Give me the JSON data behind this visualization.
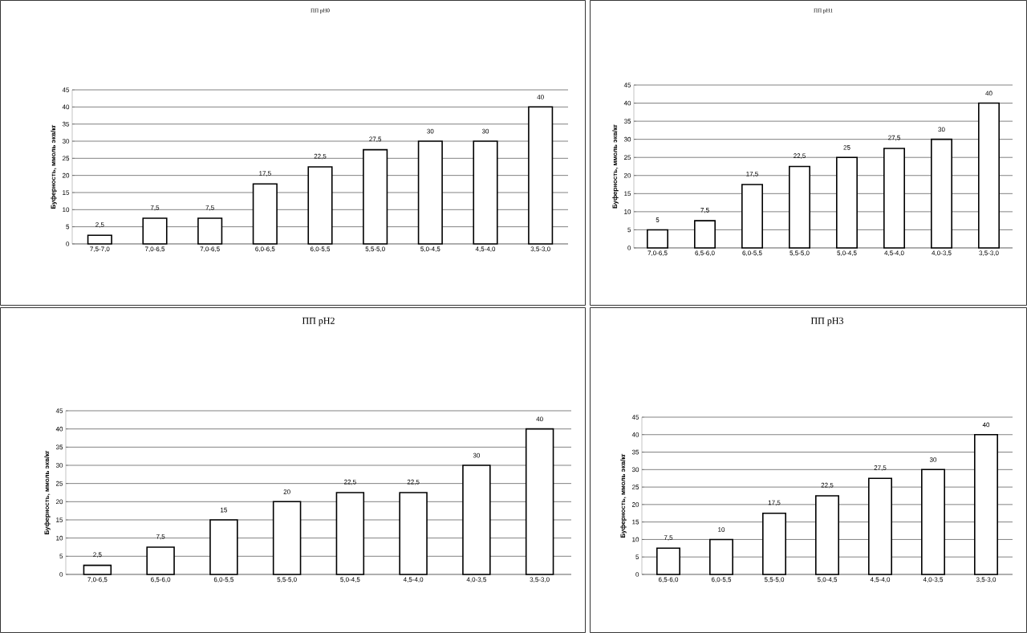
{
  "chart_data": [
    {
      "type": "bar",
      "title": "ПП pH0",
      "ylabel": "Буферность, ммоль экв/кг",
      "color": "#ffffff",
      "grid": "y",
      "ylim": [
        0,
        45
      ],
      "yticks": [
        0,
        5,
        10,
        15,
        20,
        25,
        30,
        35,
        40,
        45
      ],
      "categories": [
        "7,5-7,0",
        "7,0-6,5",
        "7,0-6,5",
        "6,0-6,5",
        "6,0-5,5",
        "5,5-5,0",
        "5,0-4,5",
        "4,5-4,0",
        "3,5-3,0"
      ],
      "values": [
        2.5,
        7.5,
        7.5,
        17.5,
        22.5,
        27.5,
        30,
        30,
        40
      ],
      "value_labels": [
        "2,5",
        "7,5",
        "7,5",
        "17,5",
        "22,5",
        "27,5",
        "30",
        "30",
        "40"
      ]
    },
    {
      "type": "bar",
      "title": "ПП pH1",
      "ylabel": "Буферность, ммоль экв/кг",
      "color": "#ffffff",
      "grid": "y",
      "ylim": [
        0,
        45
      ],
      "yticks": [
        0,
        5,
        10,
        15,
        20,
        25,
        30,
        35,
        40,
        45
      ],
      "categories": [
        "7,0-6,5",
        "6,5-6,0",
        "6,0-5,5",
        "5,5-5,0",
        "5,0-4,5",
        "4,5-4,0",
        "4,0-3,5",
        "3,5-3,0"
      ],
      "values": [
        5,
        7.5,
        17.5,
        22.5,
        25,
        27.5,
        30,
        40
      ],
      "value_labels": [
        "5",
        "7,5",
        "17,5",
        "22,5",
        "25",
        "27,5",
        "30",
        "40"
      ]
    },
    {
      "type": "bar",
      "title": "ПП pH2",
      "ylabel": "Буферность, ммоль экв/кг",
      "color": "#ffffff",
      "grid": "y",
      "ylim": [
        0,
        45
      ],
      "yticks": [
        0,
        5,
        10,
        15,
        20,
        25,
        30,
        35,
        40,
        45
      ],
      "categories": [
        "7,0-6,5",
        "6,5-6,0",
        "6,0-5,5",
        "5,5-5,0",
        "5,0-4,5",
        "4,5-4,0",
        "4,0-3,5",
        "3,5-3,0"
      ],
      "values": [
        2.5,
        7.5,
        15,
        20,
        22.5,
        22.5,
        30,
        40
      ],
      "value_labels": [
        "2,5",
        "7,5",
        "15",
        "20",
        "22,5",
        "22,5",
        "30",
        "40"
      ]
    },
    {
      "type": "bar",
      "title": "ПП pH3",
      "ylabel": "Буферность, ммоль экв/кг",
      "color": "#ffffff",
      "grid": "y",
      "ylim": [
        0,
        45
      ],
      "yticks": [
        0,
        5,
        10,
        15,
        20,
        25,
        30,
        35,
        40,
        45
      ],
      "categories": [
        "6,5-6,0",
        "6,0-5,5",
        "5,5-5,0",
        "5,0-4,5",
        "4,5-4,0",
        "4,0-3,5",
        "3,5-3,0"
      ],
      "values": [
        7.5,
        10,
        17.5,
        22.5,
        27.5,
        30,
        40
      ],
      "value_labels": [
        "7,5",
        "10",
        "17,5",
        "22,5",
        "27,5",
        "30",
        "40"
      ]
    }
  ]
}
